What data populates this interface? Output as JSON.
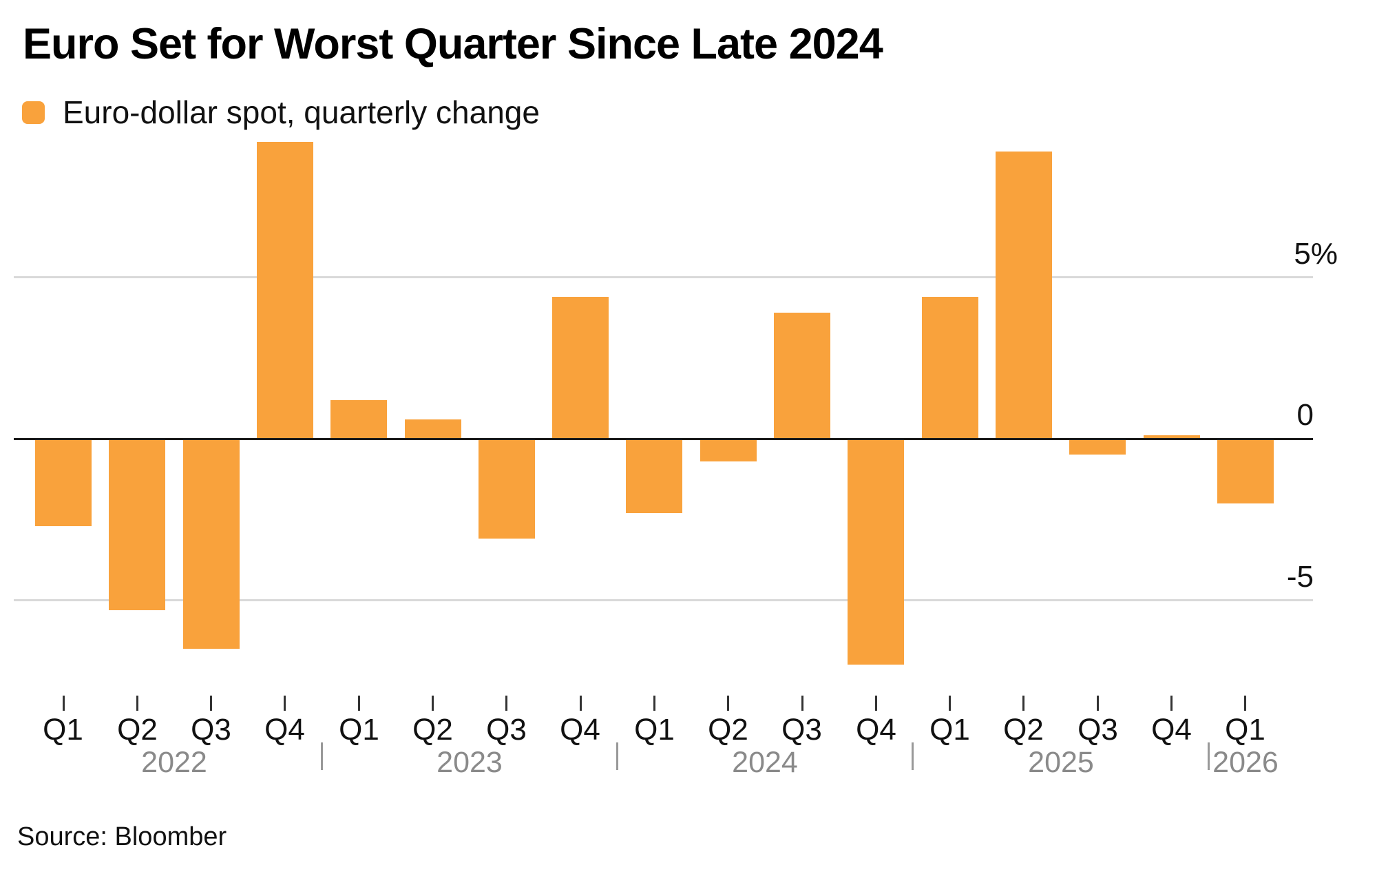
{
  "chart_data": {
    "type": "bar",
    "title": "Euro Set for Worst Quarter Since Late 2024",
    "legend_label": "Euro-dollar spot, quarterly change",
    "source": "Source: Bloomber",
    "unit": "%",
    "bar_color": "#F9A23C",
    "categories": [
      "Q1",
      "Q2",
      "Q3",
      "Q4",
      "Q1",
      "Q2",
      "Q3",
      "Q4",
      "Q1",
      "Q2",
      "Q3",
      "Q4",
      "Q1",
      "Q2",
      "Q3",
      "Q4",
      "Q1"
    ],
    "values": [
      -2.7,
      -5.3,
      -6.5,
      9.2,
      1.2,
      0.6,
      -3.1,
      4.4,
      -2.3,
      -0.7,
      3.9,
      -7.0,
      4.4,
      8.9,
      -0.5,
      0.1,
      -2.0
    ],
    "series": [
      {
        "name": "Euro-dollar spot, quarterly change",
        "values": [
          -2.7,
          -5.3,
          -6.5,
          9.2,
          1.2,
          0.6,
          -3.1,
          4.4,
          -2.3,
          -0.7,
          3.9,
          -7.0,
          4.4,
          8.9,
          -0.5,
          0.1,
          -2.0
        ]
      }
    ],
    "year_groups": [
      {
        "label": "2022",
        "start": 0,
        "count": 4
      },
      {
        "label": "2023",
        "start": 4,
        "count": 4
      },
      {
        "label": "2024",
        "start": 8,
        "count": 4
      },
      {
        "label": "2025",
        "start": 12,
        "count": 4
      },
      {
        "label": "2026",
        "start": 16,
        "count": 1
      }
    ],
    "year_separator_glyph": "|",
    "y_axis": {
      "tick_labels": [
        "5%",
        "0",
        "-5"
      ],
      "tick_values": [
        5,
        0,
        -5
      ],
      "gridline_values": [
        5,
        -5
      ],
      "baseline_value": 0,
      "ylim": [
        -7.8,
        9.6
      ],
      "grid": true,
      "labels_position": "right"
    },
    "colors": {
      "bar": "#F9A23C",
      "baseline": "#1a1a1a",
      "gridline": "#d9d9d9",
      "tick": "#333333",
      "quarter_label": "#111111",
      "year_label": "#8a8a8a",
      "title": "#000000",
      "background": "#ffffff"
    }
  }
}
